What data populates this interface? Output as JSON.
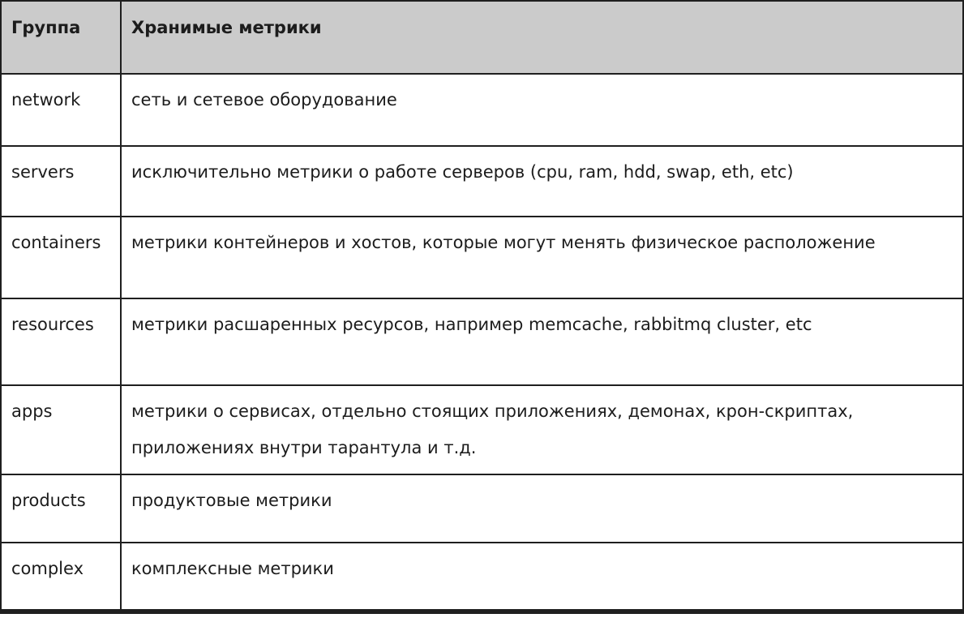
{
  "table": {
    "columns": [
      {
        "label": "Группа"
      },
      {
        "label": "Хранимые метрики"
      }
    ],
    "rows": [
      {
        "group": "network",
        "metrics": "сеть и сетевое оборудование"
      },
      {
        "group": "servers",
        "metrics": "исключительно метрики о работе серверов (cpu, ram, hdd, swap, eth, etc)"
      },
      {
        "group": "containers",
        "metrics": "метрики контейнеров и хостов, которые могут менять физическое расположение"
      },
      {
        "group": "resources",
        "metrics": "метрики расшаренных ресурсов, например memcache, rabbitmq cluster, etc"
      },
      {
        "group": "apps",
        "metrics": "метрики о сервисах, отдельно стоящих приложениях, демонах, крон-скриптах, приложениях внутри тарантула и т.д."
      },
      {
        "group": "products",
        "metrics": "продуктовые метрики"
      },
      {
        "group": "complex",
        "metrics": "комплексные метрики"
      }
    ],
    "colors": {
      "header_bg": "#cbcbcb",
      "border": "#1f1f1f",
      "text": "#1c1c1c"
    }
  }
}
